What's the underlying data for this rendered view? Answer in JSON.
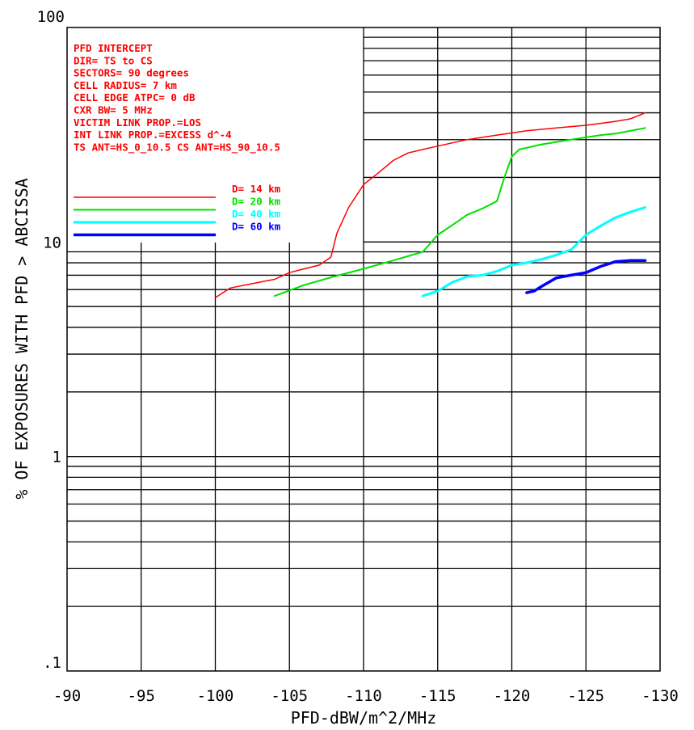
{
  "chart_data": {
    "type": "line",
    "xlabel": "PFD-dBW/m^2/MHz",
    "ylabel": "% OF EXPOSURES WITH PFD > ABCISSA",
    "xlim": [
      -90,
      -130
    ],
    "ylim": [
      0.1,
      100
    ],
    "y_scale": "log",
    "x_ticks": [
      "-90",
      "-95",
      "-100",
      "-105",
      "-110",
      "-115",
      "-120",
      "-125",
      "-130"
    ],
    "y_ticks": [
      {
        "label": "100",
        "value": 100
      },
      {
        "label": "10",
        "value": 10
      },
      {
        "label": "1",
        "value": 1
      },
      {
        "label": ".1",
        "value": 0.1
      }
    ],
    "grid": true,
    "legend_position": "upper-left",
    "annotation_lines": [
      "PFD INTERCEPT",
      "DIR= TS to CS",
      "SECTORS= 90 degrees",
      "CELL RADIUS= 7 km",
      "CELL EDGE ATPC= 0 dB",
      "CXR BW= 5 MHz",
      "VICTIM LINK PROP.=LOS",
      "INT LINK PROP.=EXCESS d^-4",
      "TS ANT=HS_0_10.5 CS ANT=HS_90_10.5"
    ],
    "annotation_color": "#ff0000",
    "series": [
      {
        "name": "D= 14 km",
        "color": "#ff0000",
        "width": 1.5,
        "x": [
          -100,
          -101,
          -103,
          -104,
          -105,
          -106,
          -107,
          -107.8,
          -108.2,
          -109,
          -110,
          -111,
          -112,
          -113,
          -114,
          -115,
          -117,
          -119,
          -121,
          -123,
          -125,
          -127,
          -128,
          -129
        ],
        "y": [
          5.5,
          6.1,
          6.5,
          6.7,
          7.2,
          7.5,
          7.8,
          8.5,
          11,
          14.5,
          18.5,
          21,
          24,
          26,
          27,
          28,
          30,
          31.5,
          33,
          34,
          35,
          36.5,
          37.5,
          40
        ]
      },
      {
        "name": "D= 20 km",
        "color": "#00e000",
        "width": 2,
        "x": [
          -104,
          -106,
          -108,
          -110,
          -112,
          -114,
          -115,
          -116,
          -117,
          -118,
          -119,
          -119.5,
          -120,
          -120.5,
          -121,
          -122,
          -124,
          -126,
          -127,
          -129
        ],
        "y": [
          5.6,
          6.3,
          6.9,
          7.5,
          8.2,
          9.0,
          10.8,
          12.0,
          13.4,
          14.3,
          15.5,
          20.0,
          25.0,
          27.0,
          27.5,
          28.5,
          30.0,
          31.5,
          32.0,
          34.0
        ]
      },
      {
        "name": "D= 40 km",
        "color": "#00ffff",
        "width": 3,
        "x": [
          -114,
          -115,
          -116,
          -117,
          -118,
          -119,
          -120,
          -121,
          -122,
          -123,
          -124,
          -125,
          -126,
          -127,
          -128,
          -129
        ],
        "y": [
          5.6,
          5.9,
          6.5,
          6.9,
          7.0,
          7.3,
          7.8,
          8.0,
          8.3,
          8.7,
          9.2,
          10.8,
          11.9,
          13.0,
          13.8,
          14.5
        ]
      },
      {
        "name": "D= 60 km",
        "color": "#0000ff",
        "width": 3.5,
        "x": [
          -121,
          -121.5,
          -122,
          -123,
          -124,
          -125,
          -126,
          -127,
          -128,
          -129
        ],
        "y": [
          5.8,
          5.9,
          6.2,
          6.8,
          7.0,
          7.2,
          7.7,
          8.1,
          8.2,
          8.2
        ]
      }
    ]
  }
}
